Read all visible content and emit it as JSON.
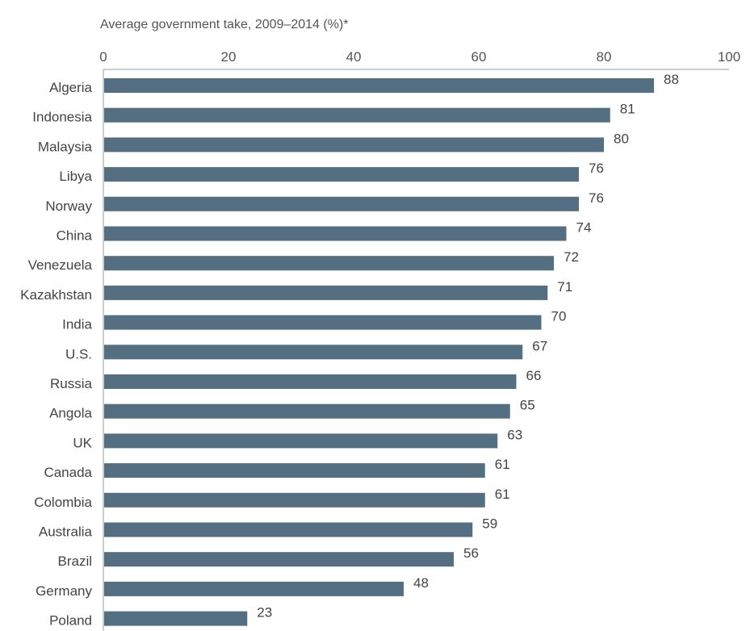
{
  "chart_data": {
    "type": "bar",
    "orientation": "horizontal",
    "title": "Average government take, 2009–2014 (%)*",
    "xlim": [
      0,
      100
    ],
    "x_ticks": [
      0,
      20,
      40,
      60,
      80,
      100
    ],
    "x_axis_position": "top",
    "grid": false,
    "categories": [
      "Algeria",
      "Indonesia",
      "Malaysia",
      "Libya",
      "Norway",
      "China",
      "Venezuela",
      "Kazakhstan",
      "India",
      "U.S.",
      "Russia",
      "Angola",
      "UK",
      "Canada",
      "Colombia",
      "Australia",
      "Brazil",
      "Germany",
      "Poland"
    ],
    "values": [
      88,
      81,
      80,
      76,
      76,
      74,
      72,
      71,
      70,
      67,
      66,
      65,
      63,
      61,
      61,
      59,
      56,
      48,
      23
    ],
    "bar_color": "#546e82",
    "axis_color": "#bbbbbb"
  }
}
